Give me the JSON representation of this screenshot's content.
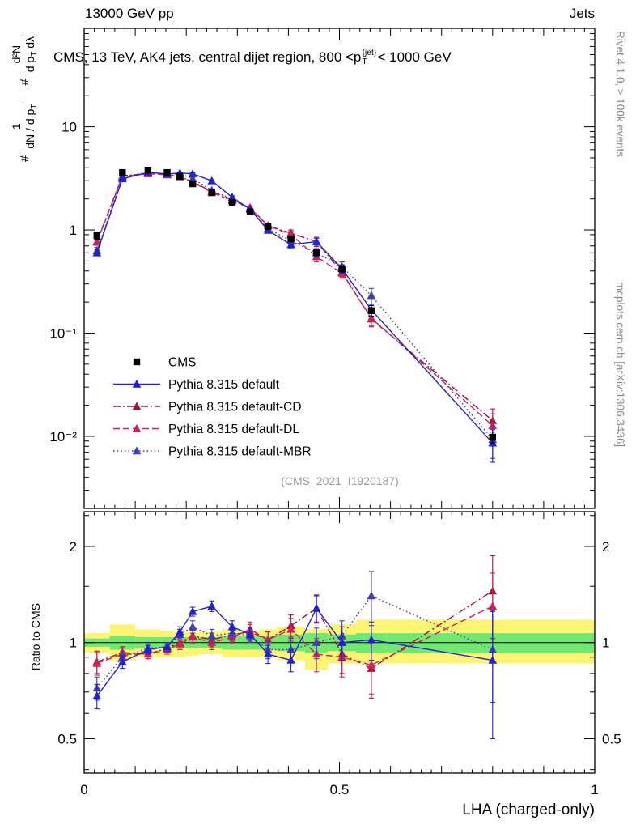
{
  "header": {
    "left": "13000 GeV pp",
    "right": "Jets"
  },
  "title": {
    "pre": "CMS, 13 TeV, AK4 jets, central dijet region, 800 <p",
    "sup": "{jet}",
    "sub": "T",
    "post": "< 1000 GeV"
  },
  "labels": {
    "x": "LHA (charged-only)",
    "ratio_y": "Ratio to CMS"
  },
  "y_main": {
    "h1": "#",
    "f1n": "1",
    "f1d": "dN / d p",
    "f1d_sub": "T",
    "h2": "#",
    "f2n": "d²N",
    "f2d": "d p",
    "f2d_sub": "T",
    "f2d_b": " dλ"
  },
  "side": {
    "rivet": "Rivet 4.1.0, ≥ 100k events",
    "mcplots": "mcplots.cern.ch [arXiv:1306.3436]"
  },
  "watermark": "(CMS_2021_I1920187)",
  "chart_data": {
    "type": "line",
    "title": "CMS, 13 TeV, AK4 jets, central dijet region, 800 <pT{jet}< 1000 GeV",
    "xlabel": "LHA (charged-only)",
    "ylabel": "# 1/(dN/dpT) d²N/(dpT dλ)",
    "ratio_label": "Ratio to CMS",
    "legend_position": "inside-left",
    "grid": false,
    "x": [
      0.025,
      0.075,
      0.125,
      0.1625,
      0.1875,
      0.2125,
      0.25,
      0.29,
      0.325,
      0.36,
      0.405,
      0.455,
      0.505,
      0.5625,
      0.8
    ],
    "bin_edges": [
      0,
      0.05,
      0.1,
      0.15,
      0.175,
      0.2,
      0.225,
      0.27,
      0.31,
      0.3425,
      0.3775,
      0.4325,
      0.4775,
      0.5325,
      0.5925,
      1.0
    ],
    "main_axis": {
      "xlim": [
        0,
        1
      ],
      "ylim": [
        0.002,
        90
      ],
      "log_y": true,
      "yticks": [
        {
          "v": 10,
          "t": "10"
        },
        {
          "v": 1,
          "t": "1"
        },
        {
          "v": 0.1,
          "t": "10⁻¹"
        },
        {
          "v": 0.01,
          "t": "10⁻²"
        }
      ],
      "xticks": [
        {
          "v": 0,
          "t": "0"
        },
        {
          "v": 0.5,
          "t": "0.5"
        },
        {
          "v": 1,
          "t": "1"
        }
      ]
    },
    "ratio_axis": {
      "ylim": [
        0.39,
        2.57
      ],
      "log_y": true,
      "yticks": [
        {
          "v": 0.5,
          "t": "0.5"
        },
        {
          "v": 1,
          "t": "1"
        },
        {
          "v": 2,
          "t": "2"
        }
      ],
      "minor": [
        0.4,
        0.6,
        0.7,
        0.8,
        0.9,
        1.5,
        2.5
      ],
      "ref_color": "#1a1a1a"
    },
    "ratio_bands": {
      "yellow_color": "#fdf474",
      "green_color": "#72e872",
      "yellow_lo": [
        0.93,
        0.88,
        0.9,
        0.9,
        0.9,
        0.91,
        0.92,
        0.9,
        0.9,
        0.9,
        0.88,
        0.82,
        0.86,
        0.86,
        0.86
      ],
      "yellow_hi": [
        1.07,
        1.14,
        1.1,
        1.09,
        1.08,
        1.08,
        1.08,
        1.1,
        1.08,
        1.1,
        1.12,
        1.1,
        1.14,
        1.18,
        1.18
      ],
      "green_lo": [
        0.97,
        0.95,
        0.96,
        0.96,
        0.96,
        0.96,
        0.96,
        0.95,
        0.95,
        0.95,
        0.94,
        0.93,
        0.94,
        0.93,
        0.93
      ],
      "green_hi": [
        1.03,
        1.05,
        1.04,
        1.04,
        1.04,
        1.04,
        1.04,
        1.05,
        1.05,
        1.05,
        1.06,
        1.07,
        1.06,
        1.07,
        1.07
      ]
    },
    "series": [
      {
        "name": "CMS",
        "color": "#000000",
        "marker": "square",
        "line": "none",
        "y": [
          0.88,
          3.6,
          3.8,
          3.6,
          3.3,
          2.8,
          2.3,
          1.85,
          1.5,
          1.08,
          0.82,
          0.6,
          0.42,
          0.165,
          0.0098
        ],
        "yerr": [
          0.07,
          0.18,
          0.18,
          0.17,
          0.15,
          0.13,
          0.1,
          0.09,
          0.07,
          0.06,
          0.05,
          0.04,
          0.03,
          0.02,
          0.0012
        ]
      },
      {
        "name": "Pythia 8.315 default",
        "color": "#2222cc",
        "marker": "triangle",
        "line": "solid",
        "y": [
          0.6,
          3.13,
          3.61,
          3.49,
          3.56,
          3.5,
          2.99,
          2.07,
          1.59,
          0.99,
          0.72,
          0.77,
          0.42,
          0.168,
          0.0086
        ],
        "yerr": [
          0.04,
          0.08,
          0.08,
          0.08,
          0.08,
          0.08,
          0.08,
          0.07,
          0.06,
          0.05,
          0.05,
          0.06,
          0.04,
          0.022,
          0.003
        ],
        "ratio": [
          0.68,
          0.87,
          0.95,
          0.97,
          1.08,
          1.25,
          1.3,
          1.12,
          1.06,
          0.92,
          0.88,
          1.28,
          1.0,
          1.02,
          0.88
        ],
        "ratio_err": [
          0.06,
          0.04,
          0.03,
          0.03,
          0.04,
          0.04,
          0.05,
          0.05,
          0.05,
          0.06,
          0.07,
          0.12,
          0.12,
          0.14,
          0.38
        ]
      },
      {
        "name": "Pythia 8.315 default-CD",
        "color": "#a01535",
        "marker": "triangle",
        "line": "dashdot",
        "y": [
          0.77,
          3.35,
          3.5,
          3.46,
          3.3,
          2.94,
          2.35,
          1.96,
          1.62,
          1.1,
          0.93,
          0.77,
          0.39,
          0.137,
          0.0142
        ],
        "yerr": [
          0.05,
          0.09,
          0.09,
          0.09,
          0.09,
          0.09,
          0.08,
          0.07,
          0.07,
          0.06,
          0.07,
          0.08,
          0.04,
          0.022,
          0.0042
        ],
        "ratio": [
          0.87,
          0.93,
          0.92,
          0.96,
          1.0,
          1.05,
          1.02,
          1.06,
          1.08,
          1.02,
          1.13,
          1.28,
          0.92,
          0.83,
          1.45
        ],
        "ratio_err": [
          0.07,
          0.04,
          0.03,
          0.03,
          0.04,
          0.05,
          0.05,
          0.05,
          0.06,
          0.06,
          0.09,
          0.13,
          0.12,
          0.16,
          0.42
        ]
      },
      {
        "name": "Pythia 8.315 default-DL",
        "color": "#cc2255",
        "marker": "triangle",
        "line": "dashed",
        "y": [
          0.76,
          3.31,
          3.5,
          3.42,
          3.27,
          2.91,
          2.3,
          1.92,
          1.65,
          1.1,
          0.9,
          0.55,
          0.38,
          0.14,
          0.0127
        ],
        "yerr": [
          0.05,
          0.09,
          0.09,
          0.09,
          0.09,
          0.09,
          0.08,
          0.07,
          0.07,
          0.06,
          0.07,
          0.06,
          0.04,
          0.022,
          0.0038
        ],
        "ratio": [
          0.86,
          0.92,
          0.92,
          0.95,
          0.99,
          1.04,
          1.0,
          1.04,
          1.1,
          1.02,
          1.1,
          0.92,
          0.9,
          0.85,
          1.3
        ],
        "ratio_err": [
          0.07,
          0.04,
          0.03,
          0.03,
          0.04,
          0.05,
          0.05,
          0.05,
          0.06,
          0.06,
          0.09,
          0.11,
          0.12,
          0.16,
          0.35
        ]
      },
      {
        "name": "Pythia 8.315 default-MBR",
        "color": "#3f3fae",
        "marker": "triangle",
        "line": "dotted",
        "y": [
          0.63,
          3.24,
          3.65,
          3.49,
          3.5,
          3.14,
          2.42,
          1.98,
          1.58,
          1.03,
          0.78,
          0.6,
          0.44,
          0.231,
          0.0093
        ],
        "yerr": [
          0.05,
          0.09,
          0.09,
          0.09,
          0.09,
          0.09,
          0.08,
          0.07,
          0.06,
          0.05,
          0.06,
          0.06,
          0.05,
          0.04,
          0.0032
        ],
        "ratio": [
          0.72,
          0.9,
          0.96,
          0.97,
          1.06,
          1.12,
          1.05,
          1.07,
          1.05,
          0.95,
          0.95,
          1.0,
          1.05,
          1.4,
          0.95
        ],
        "ratio_err": [
          0.06,
          0.04,
          0.03,
          0.03,
          0.04,
          0.05,
          0.05,
          0.05,
          0.05,
          0.06,
          0.08,
          0.11,
          0.12,
          0.27,
          0.3
        ]
      }
    ]
  }
}
